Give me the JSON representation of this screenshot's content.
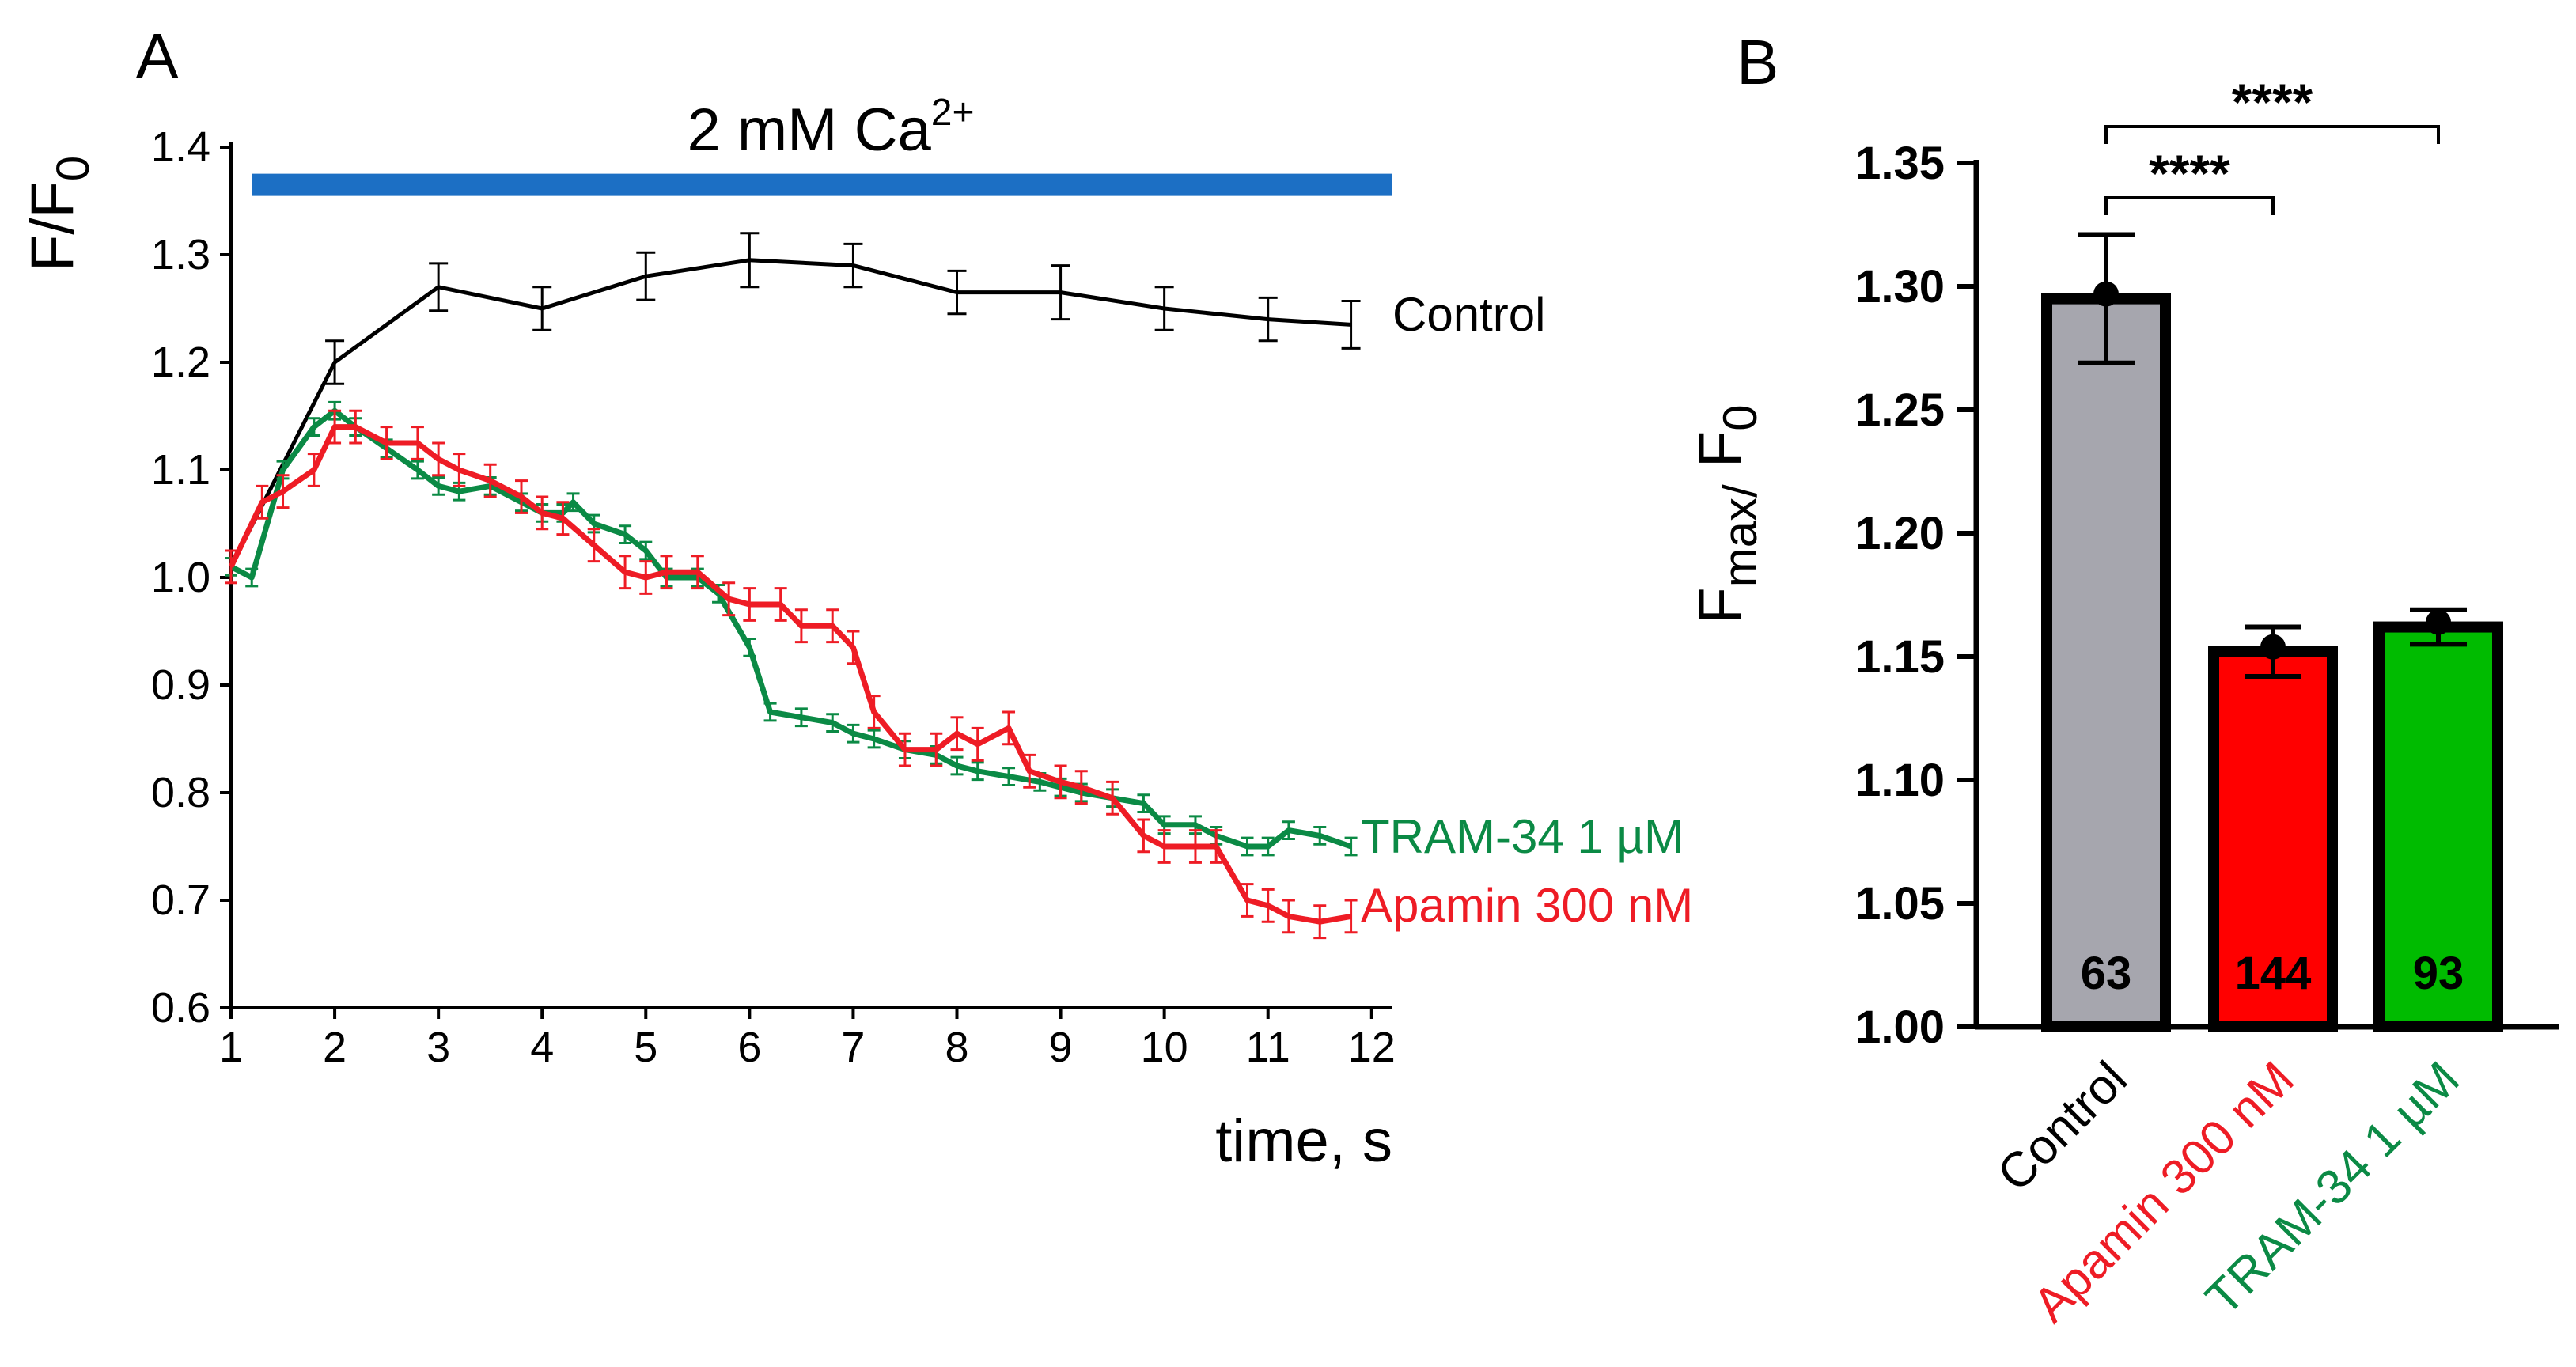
{
  "figure": {
    "panel_a_letter": "A",
    "panel_b_letter": "B"
  },
  "chart_data": [
    {
      "panel": "A",
      "type": "line",
      "title": "",
      "xlabel": "time, s",
      "ylabel_main": "F/F",
      "ylabel_sub": "0",
      "xlim": [
        1,
        12.2
      ],
      "ylim": [
        0.6,
        1.4
      ],
      "xticks": [
        1,
        2,
        3,
        4,
        5,
        6,
        7,
        8,
        9,
        10,
        11,
        12
      ],
      "yticks": [
        "0.6",
        "0.7",
        "0.8",
        "0.9",
        "1.0",
        "1.1",
        "1.2",
        "1.3",
        "1.4"
      ],
      "annotation": {
        "text_main": "2 mM Ca",
        "text_sup": "2+",
        "bar_x": [
          1.2,
          12.2
        ],
        "bar_y": 1.365,
        "color": "#1c6fc4"
      },
      "series": [
        {
          "name": "Control",
          "color": "#000000",
          "x": [
            1,
            2,
            3,
            4,
            5,
            6,
            7,
            8,
            9,
            10,
            11,
            11.8
          ],
          "y": [
            1.01,
            1.2,
            1.27,
            1.25,
            1.28,
            1.295,
            1.29,
            1.265,
            1.265,
            1.25,
            1.24,
            1.235
          ],
          "err": [
            0,
            0.02,
            0.022,
            0.02,
            0.022,
            0.025,
            0.02,
            0.02,
            0.025,
            0.02,
            0.02,
            0.022
          ]
        },
        {
          "name": "TRAM-34 1 µM",
          "color": "#0b8a45",
          "x": [
            1,
            1.2,
            1.5,
            1.8,
            2.0,
            2.2,
            2.5,
            2.8,
            3.0,
            3.2,
            3.5,
            3.8,
            4.0,
            4.2,
            4.3,
            4.5,
            4.8,
            5.0,
            5.2,
            5.5,
            5.7,
            6.0,
            6.2,
            6.5,
            6.8,
            7.0,
            7.2,
            7.5,
            7.8,
            8.0,
            8.2,
            8.5,
            8.8,
            9.0,
            9.2,
            9.5,
            9.8,
            10.0,
            10.3,
            10.5,
            10.8,
            11.0,
            11.2,
            11.5,
            11.8
          ],
          "y": [
            1.01,
            1.0,
            1.1,
            1.14,
            1.155,
            1.14,
            1.12,
            1.1,
            1.085,
            1.08,
            1.085,
            1.07,
            1.06,
            1.06,
            1.07,
            1.05,
            1.04,
            1.025,
            1.0,
            1.0,
            0.985,
            0.935,
            0.875,
            0.87,
            0.865,
            0.855,
            0.85,
            0.84,
            0.835,
            0.825,
            0.82,
            0.815,
            0.81,
            0.805,
            0.8,
            0.795,
            0.79,
            0.77,
            0.77,
            0.76,
            0.75,
            0.75,
            0.765,
            0.76,
            0.75
          ],
          "err": 0.008
        },
        {
          "name": "Apamin 300 nM",
          "color": "#ee1c25",
          "x": [
            1,
            1.3,
            1.5,
            1.8,
            2.0,
            2.2,
            2.5,
            2.8,
            3.0,
            3.2,
            3.5,
            3.8,
            4.0,
            4.2,
            4.5,
            4.8,
            5.0,
            5.2,
            5.5,
            5.8,
            6.0,
            6.3,
            6.5,
            6.8,
            7.0,
            7.2,
            7.5,
            7.8,
            8.0,
            8.2,
            8.5,
            8.7,
            9.0,
            9.2,
            9.5,
            9.8,
            10.0,
            10.3,
            10.5,
            10.8,
            11.0,
            11.2,
            11.5,
            11.8
          ],
          "y": [
            1.01,
            1.07,
            1.08,
            1.1,
            1.14,
            1.14,
            1.125,
            1.125,
            1.11,
            1.1,
            1.09,
            1.075,
            1.06,
            1.055,
            1.03,
            1.005,
            1.0,
            1.005,
            1.005,
            0.98,
            0.975,
            0.975,
            0.955,
            0.955,
            0.935,
            0.875,
            0.84,
            0.84,
            0.855,
            0.845,
            0.86,
            0.82,
            0.81,
            0.805,
            0.795,
            0.76,
            0.75,
            0.75,
            0.75,
            0.7,
            0.695,
            0.685,
            0.68,
            0.685
          ],
          "err": 0.015
        }
      ],
      "series_labels": [
        "Control",
        "TRAM-34 1 µM",
        "Apamin 300 nM"
      ]
    },
    {
      "panel": "B",
      "type": "bar",
      "title": "",
      "ylabel_main": "F",
      "ylabel_sub1": "max/",
      "ylabel_mid": " F",
      "ylabel_sub2": "0",
      "ylim": [
        1.0,
        1.35
      ],
      "yticks": [
        "1.00",
        "1.05",
        "1.10",
        "1.15",
        "1.20",
        "1.25",
        "1.30",
        "1.35"
      ],
      "categories": [
        "Control",
        "Apamin 300 nM",
        "TRAM-34 1 µM"
      ],
      "category_colors": [
        "#000000",
        "#ee1c25",
        "#0b8a45"
      ],
      "bar_fills": [
        "#a6a6ae",
        "#ff0000",
        "#00bb00"
      ],
      "values": [
        1.295,
        1.152,
        1.162
      ],
      "err": [
        0.026,
        0.01,
        0.007
      ],
      "n_labels": [
        "63",
        "144",
        "93"
      ],
      "significance": [
        {
          "from": 0,
          "to": 1,
          "label": "****"
        },
        {
          "from": 0,
          "to": 2,
          "label": "****"
        }
      ]
    }
  ]
}
